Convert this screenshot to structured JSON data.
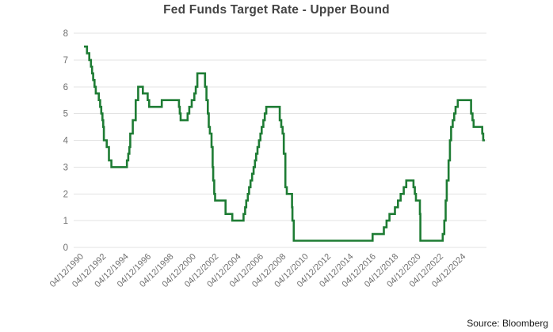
{
  "title": "Fed Funds Target Rate - Upper Bound",
  "source": {
    "label": "Source: Bloomberg"
  },
  "colors": {
    "background": "#ffffff",
    "line": "#1e7c34",
    "grid": "#e3e3e3",
    "axis_text": "#707070",
    "title_text": "#444444",
    "source_text": "#1a1a1a"
  },
  "chart_data": {
    "type": "line",
    "line_style": "step-after",
    "title": "Fed Funds Target Rate - Upper Bound",
    "xlabel": "",
    "ylabel": "",
    "grid": "horizontal",
    "legend": "none",
    "ylim": [
      0,
      8
    ],
    "y_ticks": [
      0,
      1,
      2,
      3,
      4,
      5,
      6,
      7,
      8
    ],
    "x_range_years": [
      1990.28,
      2025.95
    ],
    "x_ticks": [
      {
        "label": "04/12/1990",
        "year": 1990.28
      },
      {
        "label": "04/12/1992",
        "year": 1992.28
      },
      {
        "label": "04/12/1994",
        "year": 1994.28
      },
      {
        "label": "04/12/1996",
        "year": 1996.28
      },
      {
        "label": "04/12/1998",
        "year": 1998.28
      },
      {
        "label": "04/12/2000",
        "year": 2000.28
      },
      {
        "label": "04/12/2002",
        "year": 2002.28
      },
      {
        "label": "04/12/2004",
        "year": 2004.28
      },
      {
        "label": "04/12/2006",
        "year": 2006.28
      },
      {
        "label": "04/12/2008",
        "year": 2008.28
      },
      {
        "label": "04/12/2010",
        "year": 2010.28
      },
      {
        "label": "04/12/2012",
        "year": 2012.28
      },
      {
        "label": "04/12/2014",
        "year": 2014.28
      },
      {
        "label": "04/12/2016",
        "year": 2016.28
      },
      {
        "label": "04/12/2018",
        "year": 2018.28
      },
      {
        "label": "04/12/2020",
        "year": 2020.28
      },
      {
        "label": "04/12/2022",
        "year": 2022.28
      },
      {
        "label": "04/12/2024",
        "year": 2024.28
      }
    ],
    "series": [
      {
        "name": "Fed Funds Target Rate - Upper Bound",
        "color": "#1e7c34",
        "points": [
          [
            1990.28,
            7.5
          ],
          [
            1990.55,
            7.25
          ],
          [
            1990.75,
            7.0
          ],
          [
            1990.9,
            6.75
          ],
          [
            1991.0,
            6.5
          ],
          [
            1991.1,
            6.25
          ],
          [
            1991.22,
            6.0
          ],
          [
            1991.33,
            5.75
          ],
          [
            1991.6,
            5.5
          ],
          [
            1991.72,
            5.25
          ],
          [
            1991.82,
            5.0
          ],
          [
            1991.92,
            4.75
          ],
          [
            1991.99,
            4.5
          ],
          [
            1992.05,
            4.0
          ],
          [
            1992.3,
            3.75
          ],
          [
            1992.5,
            3.25
          ],
          [
            1992.72,
            3.0
          ],
          [
            1994.1,
            3.25
          ],
          [
            1994.22,
            3.5
          ],
          [
            1994.32,
            3.75
          ],
          [
            1994.4,
            4.25
          ],
          [
            1994.62,
            4.75
          ],
          [
            1994.88,
            5.5
          ],
          [
            1995.1,
            6.0
          ],
          [
            1995.52,
            5.75
          ],
          [
            1995.95,
            5.5
          ],
          [
            1996.08,
            5.25
          ],
          [
            1997.2,
            5.5
          ],
          [
            1998.73,
            5.25
          ],
          [
            1998.8,
            5.0
          ],
          [
            1998.88,
            4.75
          ],
          [
            1999.5,
            5.0
          ],
          [
            1999.65,
            5.25
          ],
          [
            1999.87,
            5.5
          ],
          [
            2000.1,
            5.75
          ],
          [
            2000.23,
            6.0
          ],
          [
            2000.37,
            6.5
          ],
          [
            2001.05,
            6.0
          ],
          [
            2001.18,
            5.5
          ],
          [
            2001.3,
            5.0
          ],
          [
            2001.38,
            4.5
          ],
          [
            2001.48,
            4.25
          ],
          [
            2001.63,
            3.75
          ],
          [
            2001.73,
            3.0
          ],
          [
            2001.78,
            2.5
          ],
          [
            2001.87,
            2.0
          ],
          [
            2001.95,
            1.75
          ],
          [
            2002.88,
            1.25
          ],
          [
            2003.48,
            1.0
          ],
          [
            2004.48,
            1.25
          ],
          [
            2004.62,
            1.5
          ],
          [
            2004.72,
            1.75
          ],
          [
            2004.86,
            2.0
          ],
          [
            2004.97,
            2.25
          ],
          [
            2005.1,
            2.5
          ],
          [
            2005.24,
            2.75
          ],
          [
            2005.37,
            3.0
          ],
          [
            2005.49,
            3.25
          ],
          [
            2005.6,
            3.5
          ],
          [
            2005.72,
            3.75
          ],
          [
            2005.85,
            4.0
          ],
          [
            2005.98,
            4.25
          ],
          [
            2006.09,
            4.5
          ],
          [
            2006.24,
            4.75
          ],
          [
            2006.37,
            5.0
          ],
          [
            2006.5,
            5.25
          ],
          [
            2007.7,
            4.75
          ],
          [
            2007.83,
            4.5
          ],
          [
            2007.95,
            4.25
          ],
          [
            2008.06,
            3.5
          ],
          [
            2008.2,
            2.25
          ],
          [
            2008.33,
            2.0
          ],
          [
            2008.79,
            1.5
          ],
          [
            2008.83,
            1.0
          ],
          [
            2008.95,
            0.25
          ],
          [
            2015.96,
            0.5
          ],
          [
            2016.96,
            0.75
          ],
          [
            2017.2,
            1.0
          ],
          [
            2017.46,
            1.25
          ],
          [
            2017.95,
            1.5
          ],
          [
            2018.22,
            1.75
          ],
          [
            2018.46,
            2.0
          ],
          [
            2018.73,
            2.25
          ],
          [
            2018.96,
            2.5
          ],
          [
            2019.6,
            2.25
          ],
          [
            2019.72,
            2.0
          ],
          [
            2019.82,
            1.75
          ],
          [
            2020.17,
            1.25
          ],
          [
            2020.21,
            0.25
          ],
          [
            2022.2,
            0.5
          ],
          [
            2022.34,
            1.0
          ],
          [
            2022.46,
            1.75
          ],
          [
            2022.56,
            2.5
          ],
          [
            2022.72,
            3.25
          ],
          [
            2022.84,
            4.0
          ],
          [
            2022.95,
            4.5
          ],
          [
            2023.09,
            4.75
          ],
          [
            2023.22,
            5.0
          ],
          [
            2023.34,
            5.25
          ],
          [
            2023.54,
            5.5
          ],
          [
            2024.72,
            5.0
          ],
          [
            2024.85,
            4.75
          ],
          [
            2024.95,
            4.5
          ],
          [
            2025.72,
            4.25
          ],
          [
            2025.8,
            4.0
          ],
          [
            2025.95,
            4.0
          ]
        ]
      }
    ]
  }
}
